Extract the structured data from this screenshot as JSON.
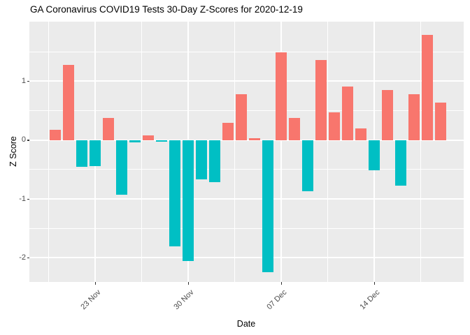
{
  "title": "GA Coronavirus COVID19 Tests 30-Day Z-Scores for 2020-12-19",
  "chart_data": {
    "type": "bar",
    "title": "GA Coronavirus COVID19 Tests 30-Day Z-Scores for 2020-12-19",
    "xlabel": "Date",
    "ylabel": "Z Score",
    "categories": [
      "20 Nov",
      "21 Nov",
      "22 Nov",
      "23 Nov",
      "24 Nov",
      "25 Nov",
      "26 Nov",
      "27 Nov",
      "28 Nov",
      "29 Nov",
      "30 Nov",
      "01 Dec",
      "02 Dec",
      "03 Dec",
      "04 Dec",
      "05 Dec",
      "06 Dec",
      "07 Dec",
      "08 Dec",
      "09 Dec",
      "10 Dec",
      "11 Dec",
      "12 Dec",
      "13 Dec",
      "14 Dec",
      "15 Dec",
      "16 Dec",
      "17 Dec",
      "18 Dec",
      "19 Dec"
    ],
    "values": [
      0.17,
      1.28,
      -0.45,
      -0.44,
      0.37,
      -0.93,
      -0.04,
      0.08,
      -0.03,
      -1.8,
      -2.05,
      -0.67,
      -0.72,
      0.29,
      0.78,
      0.03,
      -2.24,
      1.49,
      0.37,
      -0.87,
      1.36,
      0.47,
      0.91,
      0.2,
      -0.52,
      0.85,
      -0.78,
      0.78,
      1.79,
      0.63
    ],
    "x_tick_labels": [
      "23 Nov",
      "30 Nov",
      "07 Dec",
      "14 Dec"
    ],
    "y_tick_labels": [
      "1",
      "0",
      "-1",
      "-2"
    ],
    "y_ticks": [
      1,
      0,
      -1,
      -2
    ],
    "y_minor_ticks": [
      1.5,
      0.5,
      -0.5,
      -1.5
    ],
    "ylim": [
      -2.41,
      2.01
    ],
    "grid": true,
    "legend_position": "none",
    "bar_color_rule": "positive values salmon, negative values teal",
    "colors": {
      "positive_bar": "#F8766D",
      "negative_bar": "#00BFC4",
      "panel_background": "#EBEBEB",
      "gridline": "#FFFFFF",
      "tick_label": "#4D4D4D",
      "axis_text": "#000000"
    }
  }
}
